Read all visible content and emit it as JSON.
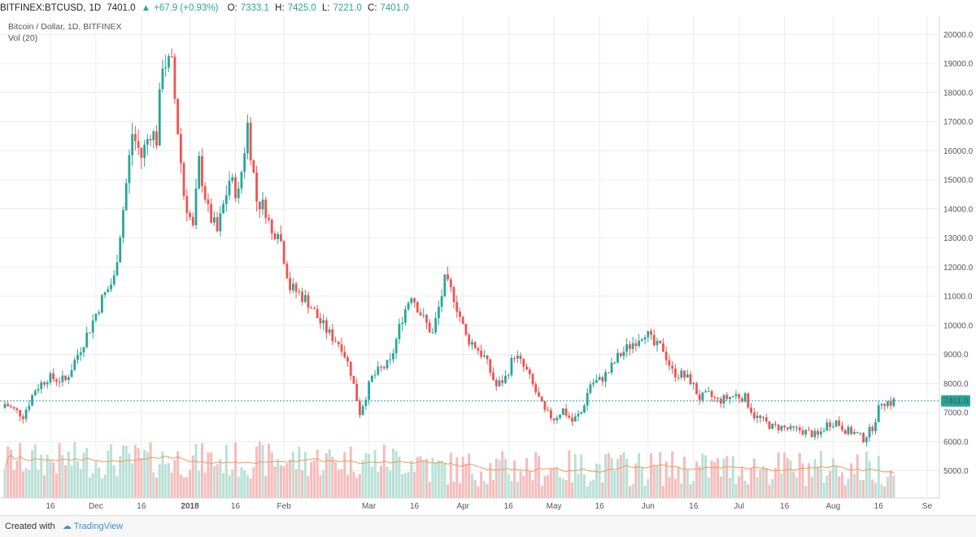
{
  "header": {
    "symbol": "BITFINEX:BTCUSD,",
    "interval": "1D",
    "last": "7401.0",
    "change": "+67.9 (+0.93%)",
    "o_label": "O:",
    "o": "7333.1",
    "h_label": "H:",
    "h": "7425.0",
    "l_label": "L:",
    "l": "7221.0",
    "c_label": "C:",
    "c": "7401.0"
  },
  "legend": {
    "title": "Bitcoin / Dollar, 1D, BITFINEX",
    "volume": "Vol (20)"
  },
  "footer": {
    "created_with": "Created with",
    "brand": "TradingView"
  },
  "colors": {
    "up": "#26a69a",
    "down": "#ef5350",
    "vol_up": "#b9e0d6",
    "vol_down": "#f5bcbc",
    "vol_ma": "#ef9a5a",
    "price_line": "#26a69a",
    "grid": "#ececec"
  },
  "chart_data": {
    "type": "candlestick",
    "symbol": "BITFINEX:BTCUSD",
    "interval": "1D",
    "price_label": "7401.0",
    "y_axis": {
      "ticks": [
        "20000.0",
        "19000.0",
        "18000.0",
        "17000.0",
        "16000.0",
        "15000.0",
        "14000.0",
        "13000.0",
        "12000.0",
        "11000.0",
        "10000.0",
        "9000.0",
        "8000.0",
        "7000.0",
        "6000.0",
        "5000.0"
      ],
      "ylim": [
        4400,
        20400
      ]
    },
    "x_axis": {
      "ticks": [
        "16",
        "Dec",
        "16",
        "2018",
        "16",
        "Feb",
        "Mar",
        "16",
        "Apr",
        "16",
        "May",
        "16",
        "Jun",
        "16",
        "Jul",
        "16",
        "Aug",
        "16",
        "Se"
      ],
      "tick_days": [
        15,
        30,
        45,
        61,
        76,
        92,
        120,
        135,
        151,
        166,
        181,
        196,
        212,
        227,
        242,
        257,
        273,
        288,
        304
      ]
    },
    "series_close": [
      [
        0,
        7300
      ],
      [
        6,
        6900
      ],
      [
        10,
        7800
      ],
      [
        14,
        8200
      ],
      [
        20,
        8100
      ],
      [
        24,
        9000
      ],
      [
        28,
        9900
      ],
      [
        32,
        10900
      ],
      [
        36,
        11600
      ],
      [
        39,
        14000
      ],
      [
        42,
        16600
      ],
      [
        45,
        15800
      ],
      [
        48,
        16700
      ],
      [
        50,
        16400
      ],
      [
        52,
        19100
      ],
      [
        55,
        18900
      ],
      [
        59,
        14500
      ],
      [
        62,
        13300
      ],
      [
        64,
        15600
      ],
      [
        67,
        13900
      ],
      [
        70,
        13200
      ],
      [
        74,
        15000
      ],
      [
        77,
        14500
      ],
      [
        80,
        16900
      ],
      [
        83,
        14300
      ],
      [
        86,
        14000
      ],
      [
        88,
        13100
      ],
      [
        90,
        13400
      ],
      [
        94,
        11300
      ],
      [
        97,
        11100
      ],
      [
        100,
        10800
      ],
      [
        104,
        10100
      ],
      [
        107,
        9700
      ],
      [
        111,
        9300
      ],
      [
        114,
        8400
      ],
      [
        117,
        7000
      ],
      [
        121,
        8200
      ],
      [
        124,
        8500
      ],
      [
        127,
        8700
      ],
      [
        131,
        10300
      ],
      [
        134,
        11100
      ],
      [
        138,
        10200
      ],
      [
        141,
        9700
      ],
      [
        145,
        11500
      ],
      [
        148,
        11000
      ],
      [
        152,
        9600
      ],
      [
        155,
        9300
      ],
      [
        158,
        8900
      ],
      [
        162,
        7900
      ],
      [
        165,
        8200
      ],
      [
        168,
        9000
      ],
      [
        172,
        8400
      ],
      [
        175,
        7700
      ],
      [
        178,
        7000
      ],
      [
        181,
        6800
      ],
      [
        184,
        7100
      ],
      [
        187,
        6700
      ],
      [
        190,
        7000
      ],
      [
        193,
        8000
      ],
      [
        196,
        8100
      ],
      [
        199,
        8400
      ],
      [
        202,
        8900
      ],
      [
        205,
        9200
      ],
      [
        208,
        9500
      ],
      [
        211,
        9800
      ],
      [
        214,
        9300
      ],
      [
        217,
        9200
      ],
      [
        220,
        8400
      ],
      [
        223,
        8300
      ],
      [
        226,
        8100
      ],
      [
        229,
        7500
      ],
      [
        232,
        7600
      ],
      [
        235,
        7400
      ],
      [
        238,
        7500
      ],
      [
        241,
        7600
      ],
      [
        244,
        7500
      ],
      [
        247,
        6900
      ],
      [
        250,
        6700
      ],
      [
        253,
        6500
      ],
      [
        256,
        6500
      ],
      [
        259,
        6400
      ],
      [
        262,
        6400
      ],
      [
        265,
        6300
      ],
      [
        268,
        6200
      ],
      [
        271,
        6600
      ],
      [
        274,
        6700
      ],
      [
        277,
        6400
      ],
      [
        280,
        6300
      ],
      [
        283,
        6100
      ],
      [
        286,
        6500
      ],
      [
        289,
        7400
      ],
      [
        292,
        7333.1
      ],
      [
        293,
        7401
      ]
    ],
    "volume_ma_note": "Vol (20)"
  }
}
